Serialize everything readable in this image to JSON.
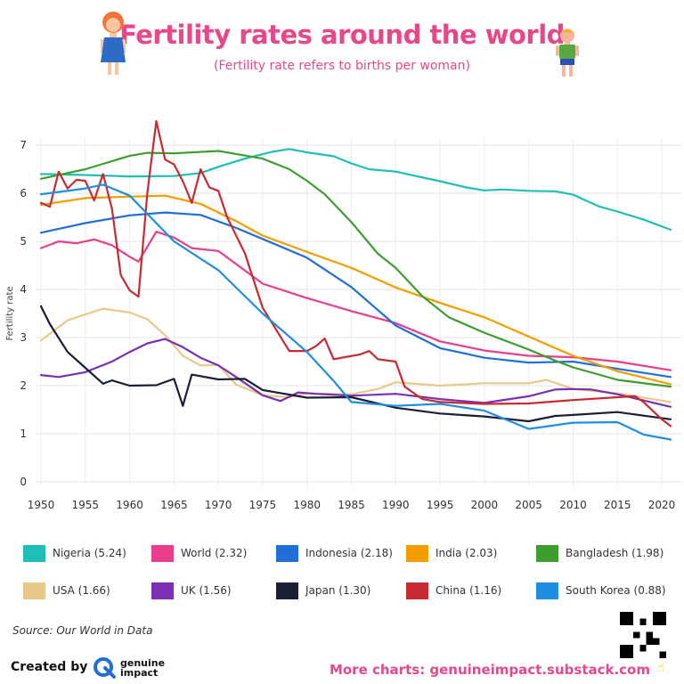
{
  "title": "Fertility rates around the world",
  "subtitle": "(Fertility rate refers to births per woman)",
  "source": "Source: Our World in Data",
  "footer": {
    "created_by": "Created by",
    "brand_line1": "genuine",
    "brand_line2": "impact",
    "more_charts": "More charts: genuineimpact.substack.com"
  },
  "chart_data": {
    "type": "line",
    "ylabel": "Fertility rate",
    "xlabel": "",
    "xlim": [
      1950,
      2021
    ],
    "ylim": [
      0,
      7.5
    ],
    "x_ticks": [
      1950,
      1955,
      1960,
      1965,
      1970,
      1975,
      1980,
      1985,
      1990,
      1995,
      2000,
      2005,
      2010,
      2015,
      2020
    ],
    "y_ticks": [
      0,
      1,
      2,
      3,
      4,
      5,
      6,
      7
    ],
    "grid": true,
    "legend_position": "bottom",
    "series": [
      {
        "name": "Nigeria (5.24)",
        "color": "#1fbfb8",
        "points": [
          [
            1950,
            6.4
          ],
          [
            1955,
            6.38
          ],
          [
            1960,
            6.35
          ],
          [
            1965,
            6.36
          ],
          [
            1968,
            6.42
          ],
          [
            1970,
            6.55
          ],
          [
            1973,
            6.72
          ],
          [
            1976,
            6.86
          ],
          [
            1978,
            6.92
          ],
          [
            1980,
            6.85
          ],
          [
            1983,
            6.77
          ],
          [
            1985,
            6.62
          ],
          [
            1987,
            6.5
          ],
          [
            1990,
            6.45
          ],
          [
            1995,
            6.25
          ],
          [
            1998,
            6.12
          ],
          [
            2000,
            6.06
          ],
          [
            2002,
            6.08
          ],
          [
            2005,
            6.05
          ],
          [
            2008,
            6.04
          ],
          [
            2010,
            5.97
          ],
          [
            2013,
            5.72
          ],
          [
            2015,
            5.62
          ],
          [
            2018,
            5.45
          ],
          [
            2021,
            5.24
          ]
        ]
      },
      {
        "name": "World (2.32)",
        "color": "#e83e8c",
        "points": [
          [
            1950,
            4.86
          ],
          [
            1952,
            5.0
          ],
          [
            1954,
            4.96
          ],
          [
            1956,
            5.04
          ],
          [
            1958,
            4.92
          ],
          [
            1960,
            4.68
          ],
          [
            1961,
            4.58
          ],
          [
            1963,
            5.2
          ],
          [
            1965,
            5.08
          ],
          [
            1967,
            4.86
          ],
          [
            1970,
            4.8
          ],
          [
            1975,
            4.12
          ],
          [
            1980,
            3.82
          ],
          [
            1985,
            3.55
          ],
          [
            1990,
            3.3
          ],
          [
            1995,
            2.92
          ],
          [
            2000,
            2.73
          ],
          [
            2005,
            2.62
          ],
          [
            2010,
            2.59
          ],
          [
            2015,
            2.5
          ],
          [
            2021,
            2.32
          ]
        ]
      },
      {
        "name": "Indonesia (2.18)",
        "color": "#1f6fd6",
        "points": [
          [
            1950,
            5.18
          ],
          [
            1955,
            5.38
          ],
          [
            1960,
            5.54
          ],
          [
            1964,
            5.6
          ],
          [
            1968,
            5.55
          ],
          [
            1972,
            5.28
          ],
          [
            1975,
            5.05
          ],
          [
            1980,
            4.66
          ],
          [
            1985,
            4.05
          ],
          [
            1990,
            3.25
          ],
          [
            1995,
            2.78
          ],
          [
            2000,
            2.58
          ],
          [
            2005,
            2.48
          ],
          [
            2010,
            2.5
          ],
          [
            2015,
            2.35
          ],
          [
            2021,
            2.18
          ]
        ]
      },
      {
        "name": "India (2.03)",
        "color": "#f59c00",
        "points": [
          [
            1950,
            5.76
          ],
          [
            1955,
            5.9
          ],
          [
            1960,
            5.93
          ],
          [
            1964,
            5.95
          ],
          [
            1968,
            5.78
          ],
          [
            1972,
            5.42
          ],
          [
            1975,
            5.12
          ],
          [
            1980,
            4.78
          ],
          [
            1985,
            4.45
          ],
          [
            1990,
            4.04
          ],
          [
            1995,
            3.72
          ],
          [
            2000,
            3.42
          ],
          [
            2005,
            3.02
          ],
          [
            2010,
            2.62
          ],
          [
            2015,
            2.3
          ],
          [
            2021,
            2.03
          ]
        ]
      },
      {
        "name": "Bangladesh (1.98)",
        "color": "#3d9e2f",
        "points": [
          [
            1950,
            6.3
          ],
          [
            1955,
            6.5
          ],
          [
            1960,
            6.78
          ],
          [
            1962,
            6.84
          ],
          [
            1965,
            6.83
          ],
          [
            1970,
            6.88
          ],
          [
            1975,
            6.72
          ],
          [
            1978,
            6.5
          ],
          [
            1980,
            6.26
          ],
          [
            1982,
            5.98
          ],
          [
            1985,
            5.4
          ],
          [
            1988,
            4.74
          ],
          [
            1990,
            4.45
          ],
          [
            1993,
            3.86
          ],
          [
            1996,
            3.42
          ],
          [
            1998,
            3.26
          ],
          [
            2000,
            3.1
          ],
          [
            2005,
            2.75
          ],
          [
            2008,
            2.52
          ],
          [
            2010,
            2.38
          ],
          [
            2015,
            2.12
          ],
          [
            2021,
            1.98
          ]
        ]
      },
      {
        "name": "USA (1.66)",
        "color": "#e8c98a",
        "points": [
          [
            1950,
            2.94
          ],
          [
            1953,
            3.36
          ],
          [
            1957,
            3.6
          ],
          [
            1960,
            3.52
          ],
          [
            1962,
            3.38
          ],
          [
            1964,
            3.05
          ],
          [
            1966,
            2.62
          ],
          [
            1968,
            2.42
          ],
          [
            1970,
            2.43
          ],
          [
            1972,
            2.02
          ],
          [
            1975,
            1.8
          ],
          [
            1978,
            1.76
          ],
          [
            1980,
            1.84
          ],
          [
            1985,
            1.82
          ],
          [
            1988,
            1.93
          ],
          [
            1990,
            2.07
          ],
          [
            1995,
            2.0
          ],
          [
            2000,
            2.05
          ],
          [
            2005,
            2.05
          ],
          [
            2007,
            2.12
          ],
          [
            2010,
            1.93
          ],
          [
            2015,
            1.84
          ],
          [
            2021,
            1.66
          ]
        ]
      },
      {
        "name": "UK (1.56)",
        "color": "#7a2fb5",
        "points": [
          [
            1950,
            2.22
          ],
          [
            1952,
            2.18
          ],
          [
            1955,
            2.28
          ],
          [
            1958,
            2.5
          ],
          [
            1960,
            2.7
          ],
          [
            1962,
            2.88
          ],
          [
            1964,
            2.97
          ],
          [
            1966,
            2.8
          ],
          [
            1968,
            2.58
          ],
          [
            1970,
            2.42
          ],
          [
            1972,
            2.18
          ],
          [
            1975,
            1.8
          ],
          [
            1977,
            1.68
          ],
          [
            1979,
            1.86
          ],
          [
            1981,
            1.83
          ],
          [
            1985,
            1.79
          ],
          [
            1990,
            1.83
          ],
          [
            1995,
            1.72
          ],
          [
            2000,
            1.64
          ],
          [
            2005,
            1.78
          ],
          [
            2008,
            1.92
          ],
          [
            2010,
            1.93
          ],
          [
            2012,
            1.92
          ],
          [
            2015,
            1.82
          ],
          [
            2021,
            1.56
          ]
        ]
      },
      {
        "name": "Japan (1.30)",
        "color": "#1a1f36",
        "points": [
          [
            1950,
            3.65
          ],
          [
            1951,
            3.28
          ],
          [
            1953,
            2.7
          ],
          [
            1955,
            2.37
          ],
          [
            1957,
            2.04
          ],
          [
            1958,
            2.11
          ],
          [
            1960,
            2.0
          ],
          [
            1963,
            2.01
          ],
          [
            1965,
            2.14
          ],
          [
            1966,
            1.58
          ],
          [
            1967,
            2.23
          ],
          [
            1970,
            2.13
          ],
          [
            1973,
            2.14
          ],
          [
            1975,
            1.91
          ],
          [
            1980,
            1.75
          ],
          [
            1985,
            1.76
          ],
          [
            1990,
            1.54
          ],
          [
            1995,
            1.42
          ],
          [
            2000,
            1.36
          ],
          [
            2005,
            1.26
          ],
          [
            2008,
            1.37
          ],
          [
            2010,
            1.39
          ],
          [
            2015,
            1.45
          ],
          [
            2021,
            1.3
          ]
        ]
      },
      {
        "name": "China (1.16)",
        "color": "#c52b30",
        "points": [
          [
            1950,
            5.8
          ],
          [
            1951,
            5.72
          ],
          [
            1952,
            6.45
          ],
          [
            1953,
            6.1
          ],
          [
            1954,
            6.28
          ],
          [
            1955,
            6.26
          ],
          [
            1956,
            5.85
          ],
          [
            1957,
            6.4
          ],
          [
            1958,
            5.68
          ],
          [
            1959,
            4.3
          ],
          [
            1960,
            3.98
          ],
          [
            1961,
            3.85
          ],
          [
            1962,
            6.02
          ],
          [
            1963,
            7.5
          ],
          [
            1964,
            6.7
          ],
          [
            1965,
            6.6
          ],
          [
            1966,
            6.25
          ],
          [
            1967,
            5.8
          ],
          [
            1968,
            6.5
          ],
          [
            1969,
            6.12
          ],
          [
            1970,
            6.05
          ],
          [
            1971,
            5.5
          ],
          [
            1973,
            4.75
          ],
          [
            1975,
            3.62
          ],
          [
            1978,
            2.72
          ],
          [
            1980,
            2.72
          ],
          [
            1981,
            2.82
          ],
          [
            1982,
            2.98
          ],
          [
            1983,
            2.55
          ],
          [
            1986,
            2.65
          ],
          [
            1987,
            2.72
          ],
          [
            1988,
            2.55
          ],
          [
            1990,
            2.5
          ],
          [
            1991,
            1.98
          ],
          [
            1993,
            1.72
          ],
          [
            1995,
            1.66
          ],
          [
            2000,
            1.62
          ],
          [
            2005,
            1.63
          ],
          [
            2010,
            1.7
          ],
          [
            2016,
            1.77
          ],
          [
            2017,
            1.78
          ],
          [
            2018,
            1.65
          ],
          [
            2020,
            1.3
          ],
          [
            2021,
            1.16
          ]
        ]
      },
      {
        "name": "South Korea (0.88)",
        "color": "#1e8fe0",
        "points": [
          [
            1950,
            5.98
          ],
          [
            1955,
            6.1
          ],
          [
            1957,
            6.18
          ],
          [
            1960,
            5.95
          ],
          [
            1965,
            5.0
          ],
          [
            1970,
            4.4
          ],
          [
            1975,
            3.5
          ],
          [
            1980,
            2.7
          ],
          [
            1983,
            2.1
          ],
          [
            1985,
            1.66
          ],
          [
            1990,
            1.58
          ],
          [
            1995,
            1.62
          ],
          [
            2000,
            1.48
          ],
          [
            2005,
            1.1
          ],
          [
            2010,
            1.23
          ],
          [
            2015,
            1.24
          ],
          [
            2018,
            0.98
          ],
          [
            2021,
            0.88
          ]
        ]
      }
    ]
  }
}
